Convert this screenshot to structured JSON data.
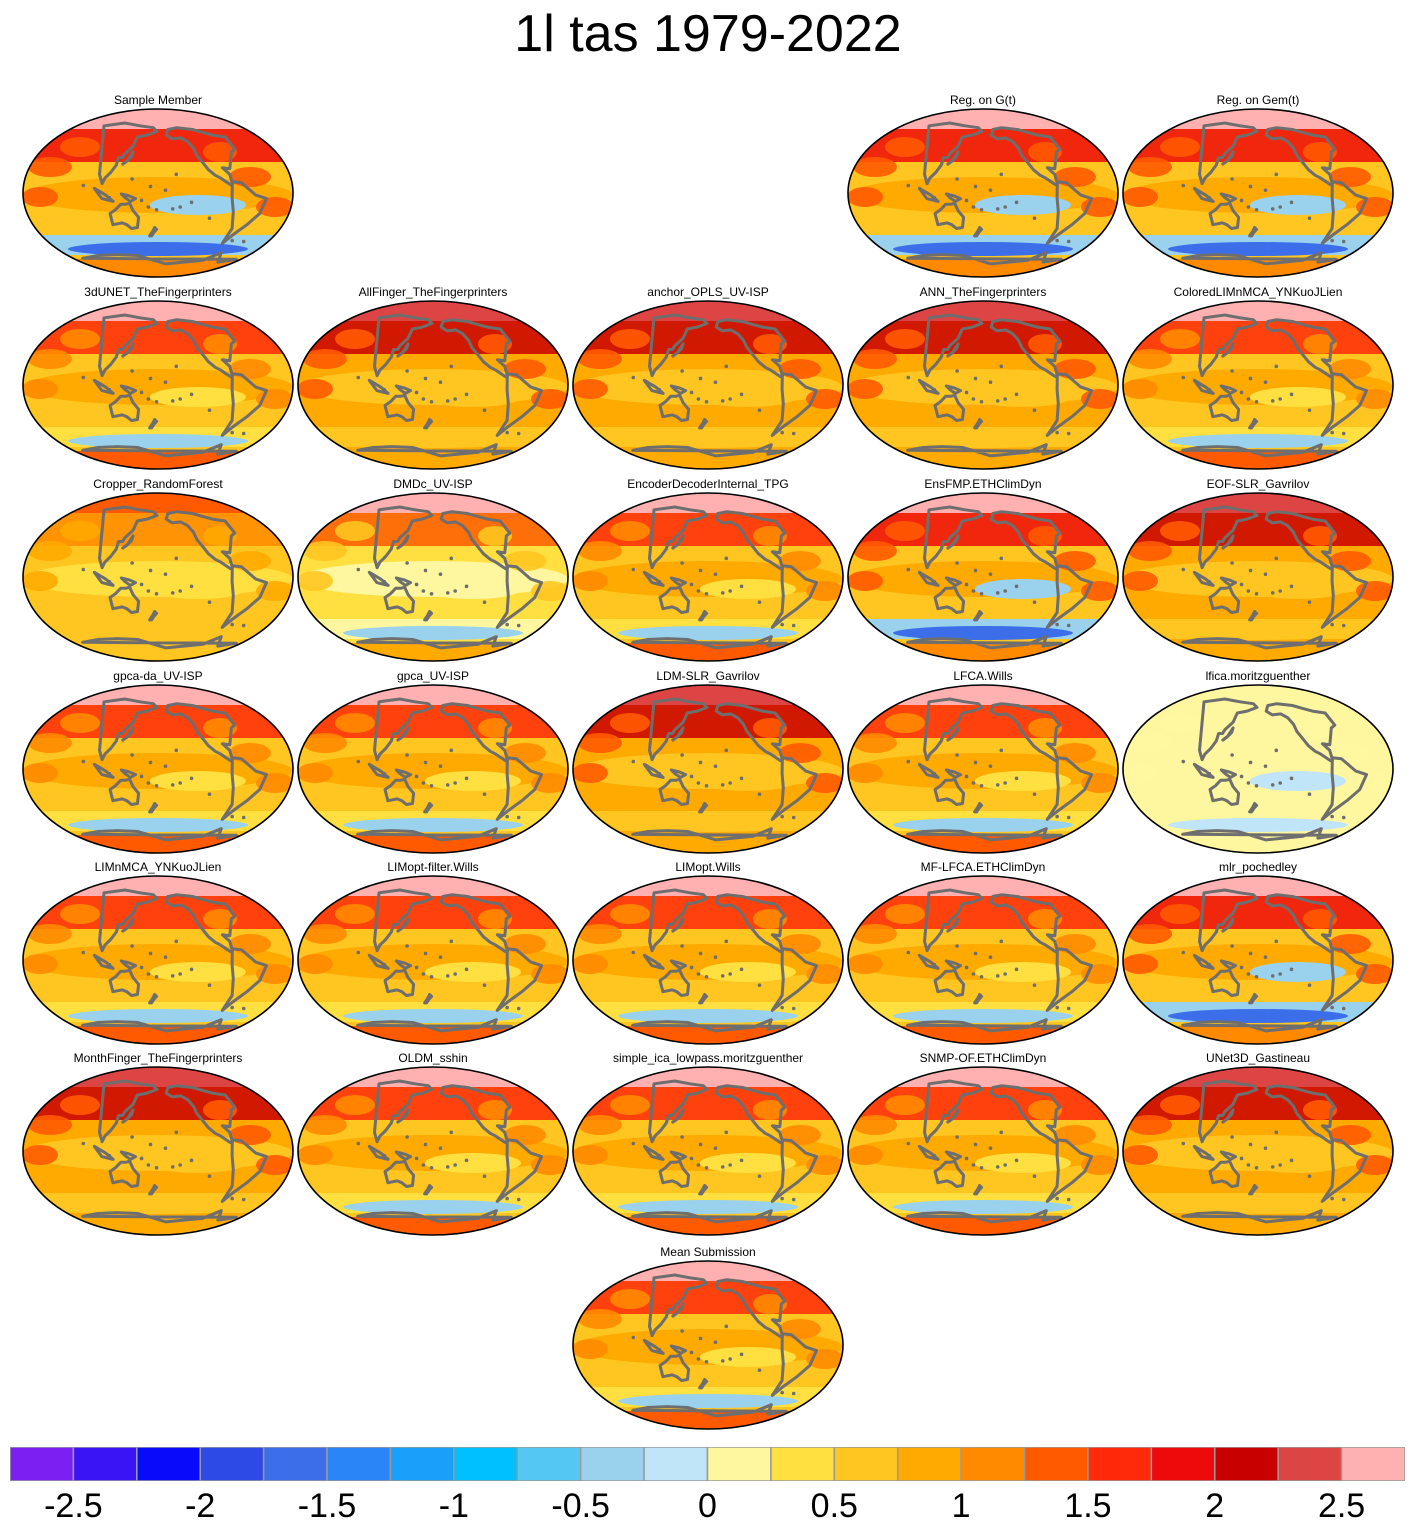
{
  "title": "1l tas 1979-2022",
  "panels": [
    {
      "title": "Sample Member",
      "row": 0,
      "col": 0,
      "variant": "sample"
    },
    {
      "title": "Reg. on G(t)",
      "row": 0,
      "col": 3,
      "variant": "sample"
    },
    {
      "title": "Reg. on Gem(t)",
      "row": 0,
      "col": 4,
      "variant": "sample"
    },
    {
      "title": "3dUNET_TheFingerprinters",
      "row": 1,
      "col": 0,
      "variant": "normal"
    },
    {
      "title": "AllFinger_TheFingerprinters",
      "row": 1,
      "col": 1,
      "variant": "warm"
    },
    {
      "title": "anchor_OPLS_UV-ISP",
      "row": 1,
      "col": 2,
      "variant": "warm"
    },
    {
      "title": "ANN_TheFingerprinters",
      "row": 1,
      "col": 3,
      "variant": "warm"
    },
    {
      "title": "ColoredLIMnMCA_YNKuoJLien",
      "row": 1,
      "col": 4,
      "variant": "normal"
    },
    {
      "title": "Cropper_RandomForest",
      "row": 2,
      "col": 0,
      "variant": "mild"
    },
    {
      "title": "DMDc_UV-ISP",
      "row": 2,
      "col": 1,
      "variant": "pale"
    },
    {
      "title": "EncoderDecoderInternal_TPG",
      "row": 2,
      "col": 2,
      "variant": "normal"
    },
    {
      "title": "EnsFMP.ETHClimDyn",
      "row": 2,
      "col": 3,
      "variant": "sample"
    },
    {
      "title": "EOF-SLR_Gavrilov",
      "row": 2,
      "col": 4,
      "variant": "warm"
    },
    {
      "title": "gpca-da_UV-ISP",
      "row": 3,
      "col": 0,
      "variant": "normal"
    },
    {
      "title": "gpca_UV-ISP",
      "row": 3,
      "col": 1,
      "variant": "normal"
    },
    {
      "title": "LDM-SLR_Gavrilov",
      "row": 3,
      "col": 2,
      "variant": "warm"
    },
    {
      "title": "LFCA.Wills",
      "row": 3,
      "col": 3,
      "variant": "normal"
    },
    {
      "title": "lfica.moritzguenther",
      "row": 3,
      "col": 4,
      "variant": "verypale"
    },
    {
      "title": "LIMnMCA_YNKuoJLien",
      "row": 4,
      "col": 0,
      "variant": "normal"
    },
    {
      "title": "LIMopt-filter.Wills",
      "row": 4,
      "col": 1,
      "variant": "normal"
    },
    {
      "title": "LIMopt.Wills",
      "row": 4,
      "col": 2,
      "variant": "normal"
    },
    {
      "title": "MF-LFCA.ETHClimDyn",
      "row": 4,
      "col": 3,
      "variant": "normal"
    },
    {
      "title": "mlr_pochedley",
      "row": 4,
      "col": 4,
      "variant": "sample"
    },
    {
      "title": "MonthFinger_TheFingerprinters",
      "row": 5,
      "col": 0,
      "variant": "warm"
    },
    {
      "title": "OLDM_sshin",
      "row": 5,
      "col": 1,
      "variant": "normal"
    },
    {
      "title": "simple_ica_lowpass.moritzguenther",
      "row": 5,
      "col": 2,
      "variant": "normal"
    },
    {
      "title": "SNMP-OF.ETHClimDyn",
      "row": 5,
      "col": 3,
      "variant": "normal"
    },
    {
      "title": "UNet3D_Gastineau",
      "row": 5,
      "col": 4,
      "variant": "warm"
    },
    {
      "title": "Mean Submission",
      "row": 6,
      "col": 2,
      "variant": "normal"
    }
  ],
  "colorbar": {
    "min": -2.75,
    "max": 2.75,
    "step": 0.25,
    "colors": [
      "#7b1ff2",
      "#3a14f5",
      "#0a0afa",
      "#2e4ae6",
      "#3b6ee8",
      "#2a86f7",
      "#1aa0f9",
      "#00c0ff",
      "#55c8f2",
      "#9ad2ee",
      "#c0e4f8",
      "#fff7a0",
      "#ffe040",
      "#ffc520",
      "#ffaa00",
      "#ff8a00",
      "#ff5a00",
      "#ff2a0a",
      "#ee0a0a",
      "#c80000",
      "#dd4444",
      "#ffb0b0"
    ],
    "ticks": [
      {
        "value": -2.5,
        "label": "-2.5"
      },
      {
        "value": -2,
        "label": "-2"
      },
      {
        "value": -1.5,
        "label": "-1.5"
      },
      {
        "value": -1,
        "label": "-1"
      },
      {
        "value": -0.5,
        "label": "-0.5"
      },
      {
        "value": 0,
        "label": "0"
      },
      {
        "value": 0.5,
        "label": "0.5"
      },
      {
        "value": 1,
        "label": "1"
      },
      {
        "value": 1.5,
        "label": "1.5"
      },
      {
        "value": 2,
        "label": "2"
      },
      {
        "value": 2.5,
        "label": "2.5"
      }
    ]
  }
}
